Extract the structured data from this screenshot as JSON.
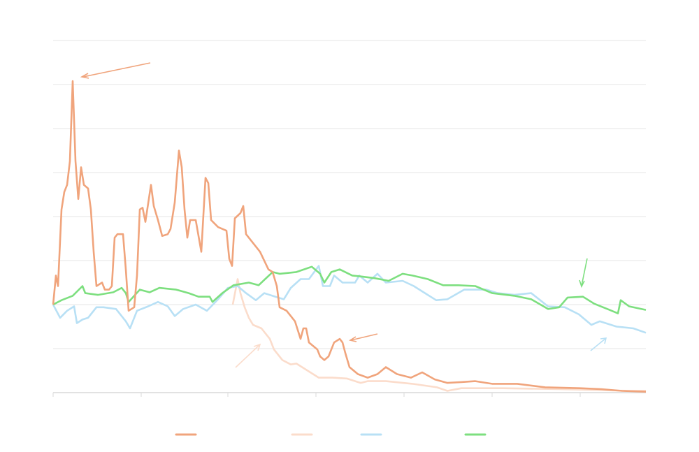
{
  "chart_data": {
    "type": "line",
    "title": "",
    "xlabel": "",
    "ylabel": "",
    "xlim": [
      0,
      424
    ],
    "ylim": [
      0,
      400
    ],
    "y_gridlines": [
      0,
      50,
      100,
      150,
      200,
      250,
      300,
      350,
      400
    ],
    "x_ticks": [
      0,
      63,
      125,
      188,
      251,
      314,
      377
    ],
    "grid": true,
    "legend_placement": "bottom-center",
    "series": [
      {
        "name": "",
        "color": "#f0a47c",
        "points": [
          [
            0,
            100
          ],
          [
            2,
            133
          ],
          [
            3.5,
            121
          ],
          [
            6,
            208
          ],
          [
            8,
            228
          ],
          [
            10,
            236
          ],
          [
            12,
            263
          ],
          [
            14,
            354
          ],
          [
            16,
            263
          ],
          [
            18,
            220
          ],
          [
            20,
            256
          ],
          [
            22,
            236
          ],
          [
            25,
            232
          ],
          [
            27,
            208
          ],
          [
            29,
            160
          ],
          [
            31,
            121
          ],
          [
            35,
            125
          ],
          [
            37,
            117
          ],
          [
            40,
            117
          ],
          [
            42,
            121
          ],
          [
            44,
            176
          ],
          [
            46,
            180
          ],
          [
            50,
            180
          ],
          [
            52,
            140
          ],
          [
            54,
            93
          ],
          [
            58,
            97
          ],
          [
            60,
            133
          ],
          [
            62,
            208
          ],
          [
            64,
            210
          ],
          [
            66,
            194
          ],
          [
            70,
            236
          ],
          [
            72,
            212
          ],
          [
            75,
            196
          ],
          [
            78,
            178
          ],
          [
            82,
            180
          ],
          [
            84,
            186
          ],
          [
            87,
            216
          ],
          [
            90,
            275
          ],
          [
            92,
            256
          ],
          [
            94,
            208
          ],
          [
            96,
            176
          ],
          [
            98,
            196
          ],
          [
            102,
            196
          ],
          [
            106,
            160
          ],
          [
            109,
            244
          ],
          [
            111,
            238
          ],
          [
            113,
            196
          ],
          [
            118,
            188
          ],
          [
            124,
            184
          ],
          [
            126,
            152
          ],
          [
            128,
            144
          ],
          [
            130,
            198
          ],
          [
            134,
            204
          ],
          [
            136,
            212
          ],
          [
            138,
            180
          ],
          [
            142,
            172
          ],
          [
            148,
            160
          ],
          [
            154,
            140
          ],
          [
            157,
            137
          ],
          [
            160,
            121
          ],
          [
            162,
            97
          ],
          [
            167,
            93
          ],
          [
            173,
            81
          ],
          [
            177,
            61
          ],
          [
            179,
            73
          ],
          [
            181,
            73
          ],
          [
            183,
            57
          ],
          [
            189,
            49
          ],
          [
            191,
            41
          ],
          [
            194,
            37
          ],
          [
            197,
            41
          ],
          [
            201,
            57
          ],
          [
            205,
            61
          ],
          [
            207,
            57
          ],
          [
            209,
            45
          ],
          [
            212,
            29
          ],
          [
            218,
            21
          ],
          [
            225,
            17
          ],
          [
            232,
            21
          ],
          [
            238,
            29
          ],
          [
            246,
            21
          ],
          [
            256,
            17
          ],
          [
            264,
            23
          ],
          [
            273,
            15
          ],
          [
            282,
            11
          ],
          [
            292,
            12
          ],
          [
            302,
            13
          ],
          [
            314,
            10
          ],
          [
            332,
            10
          ],
          [
            352,
            6
          ],
          [
            377,
            5
          ],
          [
            392,
            4
          ],
          [
            407,
            2
          ],
          [
            424,
            1
          ]
        ]
      },
      {
        "name": "",
        "color": "#fbdccb",
        "points": [
          [
            128.5,
            100
          ],
          [
            132,
            129
          ],
          [
            134,
            113
          ],
          [
            137,
            97
          ],
          [
            140,
            85
          ],
          [
            143,
            77
          ],
          [
            149,
            73
          ],
          [
            155,
            61
          ],
          [
            158,
            49
          ],
          [
            164,
            37
          ],
          [
            170,
            32
          ],
          [
            174,
            33
          ],
          [
            182,
            25
          ],
          [
            190,
            17
          ],
          [
            200,
            17
          ],
          [
            210,
            16
          ],
          [
            220,
            11
          ],
          [
            225,
            13
          ],
          [
            238,
            13
          ],
          [
            257,
            10
          ],
          [
            274.5,
            6
          ],
          [
            282,
            2
          ],
          [
            292,
            5
          ],
          [
            322,
            5
          ],
          [
            362,
            4
          ],
          [
            412,
            2
          ],
          [
            424,
            2
          ]
        ]
      },
      {
        "name": "",
        "color": "#b8e0f5",
        "points": [
          [
            0,
            100
          ],
          [
            5,
            85
          ],
          [
            10,
            93
          ],
          [
            15,
            98
          ],
          [
            17,
            79
          ],
          [
            21,
            83
          ],
          [
            25,
            85
          ],
          [
            31,
            97
          ],
          [
            36,
            97
          ],
          [
            45,
            95
          ],
          [
            52,
            81
          ],
          [
            55,
            73
          ],
          [
            60,
            93
          ],
          [
            68,
            98
          ],
          [
            75,
            103
          ],
          [
            82,
            98
          ],
          [
            87,
            87
          ],
          [
            93,
            95
          ],
          [
            102,
            100
          ],
          [
            110,
            93
          ],
          [
            118,
            106
          ],
          [
            125,
            119
          ],
          [
            132,
            121
          ],
          [
            138,
            113
          ],
          [
            145,
            105
          ],
          [
            151,
            113
          ],
          [
            159,
            109
          ],
          [
            165,
            106
          ],
          [
            170,
            119
          ],
          [
            177,
            129
          ],
          [
            183,
            129
          ],
          [
            190,
            144
          ],
          [
            193,
            121
          ],
          [
            198,
            121
          ],
          [
            201,
            133
          ],
          [
            207,
            125
          ],
          [
            216,
            125
          ],
          [
            219,
            133
          ],
          [
            225,
            125
          ],
          [
            232,
            135
          ],
          [
            238,
            125
          ],
          [
            250,
            127
          ],
          [
            258,
            121
          ],
          [
            266,
            113
          ],
          [
            274,
            105
          ],
          [
            282,
            106
          ],
          [
            294,
            117
          ],
          [
            302,
            117
          ],
          [
            310,
            117
          ],
          [
            318,
            113
          ],
          [
            330,
            111
          ],
          [
            342,
            113
          ],
          [
            354,
            98
          ],
          [
            366,
            97
          ],
          [
            376,
            89
          ],
          [
            385,
            77
          ],
          [
            391,
            81
          ],
          [
            403,
            75
          ],
          [
            415,
            73
          ],
          [
            424,
            68
          ]
        ]
      },
      {
        "name": "",
        "color": "#7ddf7f",
        "points": [
          [
            0,
            100
          ],
          [
            6,
            105
          ],
          [
            14,
            110
          ],
          [
            21,
            121
          ],
          [
            23,
            113
          ],
          [
            32,
            111
          ],
          [
            43,
            114
          ],
          [
            49,
            119
          ],
          [
            52,
            113
          ],
          [
            54,
            103
          ],
          [
            62,
            117
          ],
          [
            69,
            114
          ],
          [
            76,
            119
          ],
          [
            88,
            117
          ],
          [
            97,
            113
          ],
          [
            104,
            109
          ],
          [
            112,
            109
          ],
          [
            114,
            103
          ],
          [
            121,
            113
          ],
          [
            129,
            122
          ],
          [
            140,
            125
          ],
          [
            147,
            122
          ],
          [
            157,
            137
          ],
          [
            162,
            135
          ],
          [
            174,
            137
          ],
          [
            185,
            143
          ],
          [
            191,
            135
          ],
          [
            194,
            125
          ],
          [
            199,
            137
          ],
          [
            205,
            140
          ],
          [
            214,
            133
          ],
          [
            220,
            132
          ],
          [
            230,
            130
          ],
          [
            240,
            127
          ],
          [
            250,
            135
          ],
          [
            257,
            133
          ],
          [
            268,
            129
          ],
          [
            279,
            122
          ],
          [
            290,
            122
          ],
          [
            302,
            121
          ],
          [
            314,
            113
          ],
          [
            330,
            110
          ],
          [
            342,
            106
          ],
          [
            354,
            95
          ],
          [
            362,
            97
          ],
          [
            368,
            108
          ],
          [
            379,
            109
          ],
          [
            387,
            101
          ],
          [
            398,
            94
          ],
          [
            404,
            90
          ],
          [
            406,
            105
          ],
          [
            412,
            98
          ],
          [
            424,
            94
          ]
        ]
      }
    ]
  }
}
